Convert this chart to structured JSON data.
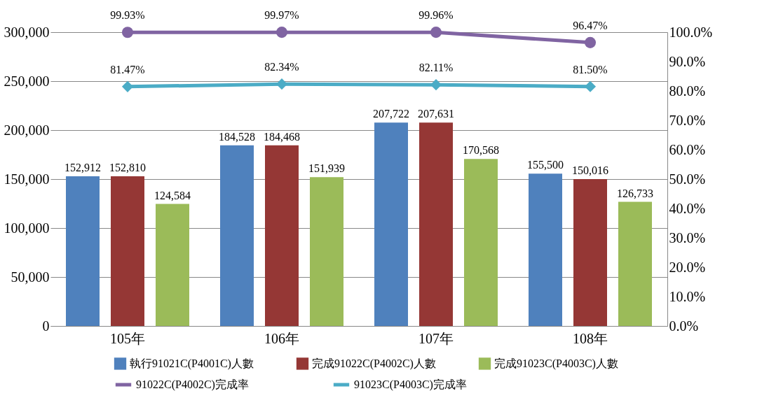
{
  "chart_data": {
    "type": "bar",
    "categories": [
      "105年",
      "106年",
      "107年",
      "108年"
    ],
    "series": [
      {
        "name": "執行91021C(P4001C)人數",
        "color": "#4f81bd",
        "values": [
          152912,
          184528,
          207722,
          155500
        ],
        "value_labels": [
          "152,912",
          "184,528",
          "207,722",
          "155,500"
        ]
      },
      {
        "name": "完成91022C(P4002C)人數",
        "color": "#953735",
        "values": [
          152810,
          184468,
          207631,
          150016
        ],
        "value_labels": [
          "152,810",
          "184,468",
          "207,631",
          "150,016"
        ]
      },
      {
        "name": "完成91023C(P4003C)人數",
        "color": "#9bbb59",
        "values": [
          124584,
          151939,
          170568,
          126733
        ],
        "value_labels": [
          "124,584",
          "151,939",
          "170,568",
          "126,733"
        ]
      },
      {
        "name": "91022C(P4002C)完成率",
        "type": "line",
        "axis": "y2",
        "marker": "circle",
        "color": "#8064a2",
        "values": [
          99.93,
          99.97,
          99.96,
          96.47
        ],
        "value_labels": [
          "99.93%",
          "99.97%",
          "99.96%",
          "96.47%"
        ]
      },
      {
        "name": "91023C(P4003C)完成率",
        "type": "line",
        "axis": "y2",
        "marker": "diamond",
        "color": "#4bacc6",
        "values": [
          81.47,
          82.34,
          82.11,
          81.5
        ],
        "value_labels": [
          "81.47%",
          "82.34%",
          "82.11%",
          "81.50%"
        ]
      }
    ],
    "ylim": [
      0,
      300000
    ],
    "yticks": [
      {
        "value": 0,
        "label": "0"
      },
      {
        "value": 50000,
        "label": "50,000"
      },
      {
        "value": 100000,
        "label": "100,000"
      },
      {
        "value": 150000,
        "label": "150,000"
      },
      {
        "value": 200000,
        "label": "200,000"
      },
      {
        "value": 250000,
        "label": "250,000"
      },
      {
        "value": 300000,
        "label": "300,000"
      }
    ],
    "y2lim": [
      0,
      100
    ],
    "y2ticks": [
      {
        "value": 0,
        "label": "0.0%"
      },
      {
        "value": 10,
        "label": "10.0%"
      },
      {
        "value": 20,
        "label": "20.0%"
      },
      {
        "value": 30,
        "label": "30.0%"
      },
      {
        "value": 40,
        "label": "40.0%"
      },
      {
        "value": 50,
        "label": "50.0%"
      },
      {
        "value": 60,
        "label": "60.0%"
      },
      {
        "value": 70,
        "label": "70.0%"
      },
      {
        "value": 80,
        "label": "80.0%"
      },
      {
        "value": 90,
        "label": "90.0%"
      },
      {
        "value": 100,
        "label": "100.0%"
      }
    ],
    "grid": "y",
    "legend": "bottom"
  }
}
